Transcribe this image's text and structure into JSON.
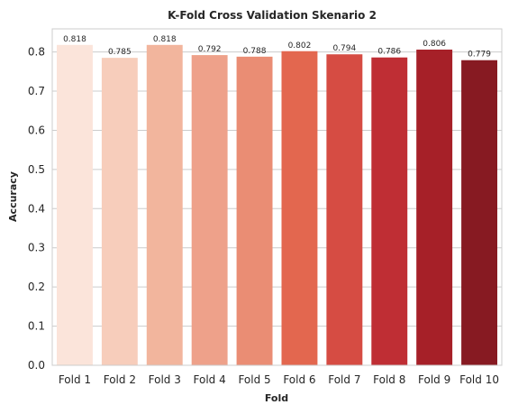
{
  "chart_data": {
    "type": "bar",
    "title": "K-Fold Cross Validation Skenario 2",
    "xlabel": "Fold",
    "ylabel": "Accuracy",
    "categories": [
      "Fold 1",
      "Fold 2",
      "Fold 3",
      "Fold 4",
      "Fold 5",
      "Fold 6",
      "Fold 7",
      "Fold 8",
      "Fold 9",
      "Fold 10"
    ],
    "values": [
      0.818,
      0.785,
      0.818,
      0.792,
      0.788,
      0.802,
      0.794,
      0.786,
      0.806,
      0.779
    ],
    "data_labels": [
      "0.818",
      "0.785",
      "0.818",
      "0.792",
      "0.788",
      "0.802",
      "0.794",
      "0.786",
      "0.806",
      "0.779"
    ],
    "yticks": [
      "0.0",
      "0.1",
      "0.2",
      "0.3",
      "0.4",
      "0.5",
      "0.6",
      "0.7",
      "0.8"
    ],
    "ylim": [
      0,
      0.859
    ],
    "grid": "horizontal",
    "legend": "none",
    "colors": [
      "#fbe4da",
      "#f7cdbb",
      "#f2b59d",
      "#eea18a",
      "#ea8d74",
      "#e3674f",
      "#d64c43",
      "#bf2e34",
      "#a62028",
      "#871a22"
    ]
  }
}
